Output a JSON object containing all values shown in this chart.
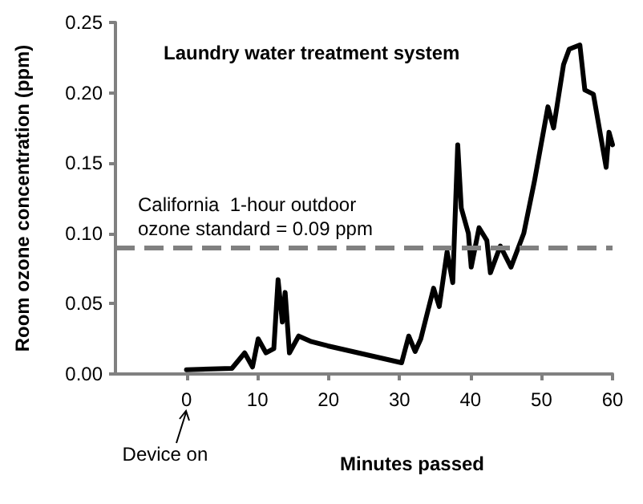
{
  "chart_data": {
    "type": "line",
    "title": "Laundry water treatment system",
    "xlabel": "Minutes passed",
    "ylabel": "Room ozone concentration (ppm)",
    "annotations": [
      "Device on"
    ],
    "series": [
      {
        "color": "#000000",
        "x": [
          0,
          6.4,
          8.2,
          9.3,
          10.1,
          11.2,
          12.3,
          12.9,
          13.5,
          13.9,
          14.5,
          15.8,
          17.6,
          19.9,
          25.1,
          30.3,
          31.3,
          32.2,
          33,
          34.8,
          35.6,
          36.7,
          37.5,
          38.2,
          38.7,
          39.7,
          40.1,
          41.2,
          42.3,
          42.8,
          44.2,
          45.7,
          47.5,
          49,
          50.9,
          51.7,
          53.1,
          53.9,
          55.4,
          56.1,
          57.3,
          59.1,
          59.5,
          60
        ],
        "values": [
          0.003,
          0.004,
          0.015,
          0.005,
          0.025,
          0.015,
          0.018,
          0.067,
          0.037,
          0.058,
          0.015,
          0.027,
          0.023,
          0.02,
          0.014,
          0.008,
          0.027,
          0.016,
          0.025,
          0.061,
          0.048,
          0.087,
          0.065,
          0.163,
          0.118,
          0.1,
          0.076,
          0.104,
          0.095,
          0.072,
          0.091,
          0.076,
          0.1,
          0.137,
          0.19,
          0.175,
          0.22,
          0.231,
          0.234,
          0.202,
          0.199,
          0.147,
          0.172,
          0.163
        ]
      }
    ],
    "xlim": [
      -10,
      60
    ],
    "xticks": [
      0,
      10,
      20,
      30,
      40,
      50,
      60
    ],
    "ylim": [
      0,
      0.25
    ],
    "yticks": [
      {
        "value": 0,
        "label": "0.00"
      },
      {
        "value": 0.05,
        "label": "0.05"
      },
      {
        "value": 0.1,
        "label": "0.10"
      },
      {
        "value": 0.15,
        "label": "0.15"
      },
      {
        "value": 0.2,
        "label": "0.20"
      },
      {
        "value": 0.25,
        "label": "0.25"
      }
    ],
    "ref_lines": [
      {
        "axis": "y",
        "value": 0.09,
        "label": "California  1-hour outdoor\nozone standard = 0.09 ppm",
        "color": "#808080",
        "line_style": "dashed"
      }
    ],
    "grid": false,
    "marker": "none",
    "line_style": "solid"
  }
}
